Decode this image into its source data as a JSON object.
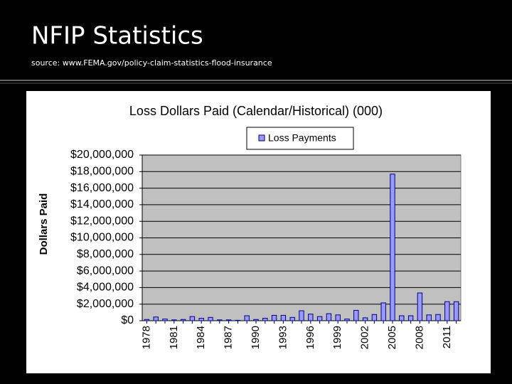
{
  "slide": {
    "title": "NFIP Statistics",
    "source": "source: www.FEMA.gov/policy-claim-statistics-flood-insurance"
  },
  "chart_data": {
    "type": "bar",
    "title": "Loss Dollars Paid (Calendar/Historical) (000)",
    "y_label": "Dollars Paid",
    "categories": [
      "1978",
      null,
      null,
      "1981",
      null,
      null,
      "1984",
      null,
      null,
      "1987",
      null,
      null,
      "1990",
      null,
      null,
      "1993",
      null,
      null,
      "1996",
      null,
      null,
      "1999",
      null,
      null,
      "2002",
      null,
      null,
      "2005",
      null,
      null,
      "2008",
      null,
      null,
      "2011",
      null
    ],
    "series": [
      {
        "name": "Loss Payments",
        "color": "#9999ff",
        "values": [
          150000,
          450000,
          200000,
          100000,
          150000,
          500000,
          300000,
          400000,
          100000,
          100000,
          50000,
          600000,
          150000,
          300000,
          650000,
          650000,
          400000,
          1200000,
          800000,
          500000,
          850000,
          700000,
          200000,
          1250000,
          350000,
          750000,
          2150000,
          17700000,
          600000,
          600000,
          3350000,
          700000,
          750000,
          2300000,
          2300000
        ]
      }
    ],
    "ylim": [
      0,
      20000000
    ],
    "yticks": [
      {
        "value": 0,
        "label": "$0"
      },
      {
        "value": 2000000,
        "label": "$2,000,000"
      },
      {
        "value": 4000000,
        "label": "$4,000,000"
      },
      {
        "value": 6000000,
        "label": "$6,000,000"
      },
      {
        "value": 8000000,
        "label": "$8,000,000"
      },
      {
        "value": 10000000,
        "label": "$10,000,000"
      },
      {
        "value": 12000000,
        "label": "$12,000,000"
      },
      {
        "value": 14000000,
        "label": "$14,000,000"
      },
      {
        "value": 16000000,
        "label": "$16,000,000"
      },
      {
        "value": 18000000,
        "label": "$18,000,000"
      },
      {
        "value": 20000000,
        "label": "$20,000,000"
      }
    ],
    "grid": true
  }
}
